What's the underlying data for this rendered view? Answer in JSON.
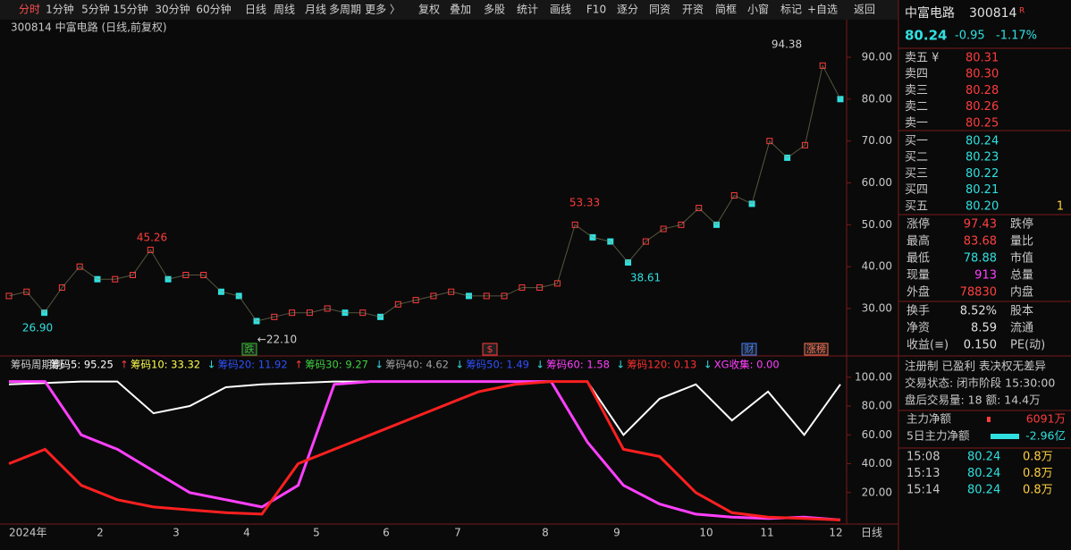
{
  "toolbar": {
    "tabs": [
      "分时",
      "1分钟",
      "5分钟",
      "15分钟",
      "30分钟",
      "60分钟",
      "日线",
      "周线",
      "月线",
      "多周期",
      "更多 〉",
      "复权",
      "叠加",
      "多股",
      "统计",
      "画线",
      "F10",
      "逐分",
      "同资",
      "开资",
      "简框",
      "小窗",
      "标记",
      "+自选",
      "返回"
    ]
  },
  "main_chart": {
    "title": "300814 中富电路 (日线,前复权)",
    "ylim": [
      20,
      96
    ],
    "yticks": [
      {
        "value": 90,
        "label": "90.00"
      },
      {
        "value": 80,
        "label": "80.00"
      },
      {
        "value": 70,
        "label": "70.00"
      },
      {
        "value": 60,
        "label": "60.00"
      },
      {
        "value": 50,
        "label": "50.00"
      },
      {
        "value": 40,
        "label": "40.00"
      },
      {
        "value": 30,
        "label": "30.00"
      }
    ],
    "closes": [
      33,
      34,
      29,
      35,
      40,
      37,
      37,
      38,
      44,
      37,
      38,
      38,
      34,
      33,
      27,
      28,
      29,
      29,
      30,
      29,
      29,
      28,
      31,
      32,
      33,
      34,
      33,
      33,
      33,
      35,
      35,
      36,
      50,
      47,
      46,
      41,
      46,
      49,
      50,
      54,
      50,
      57,
      55,
      70,
      66,
      69,
      88,
      80
    ],
    "annotations": [
      "94.38",
      "45.26",
      "53.33",
      "38.61",
      "26.90",
      "←22.10"
    ],
    "markers": [
      "跌",
      "$",
      "财",
      "涨榜"
    ]
  },
  "indicator": {
    "legend": [
      {
        "name": "筹码周期副",
        "color": "#d0d0d0"
      },
      {
        "name": "筹码5: 95.25",
        "arrow": "↑",
        "color": "#ffffff"
      },
      {
        "name": "筹码10: 33.32",
        "arrow": "↓",
        "color": "#ffff50"
      },
      {
        "name": "筹码20: 11.92",
        "arrow": "↑",
        "color": "#3050ff"
      },
      {
        "name": "筹码30: 9.27",
        "arrow": "↓",
        "color": "#40d040"
      },
      {
        "name": "筹码40: 4.62",
        "arrow": "↓",
        "color": "#a0a0a0"
      },
      {
        "name": "筹码50: 1.49",
        "arrow": "↓",
        "color": "#3050ff"
      },
      {
        "name": "筹码60: 1.58",
        "arrow": "↓",
        "color": "#ff40ff"
      },
      {
        "name": "筹码120: 0.13",
        "arrow": "↓",
        "color": "#ff3030"
      },
      {
        "name": "XG收集: 0.00",
        "color": "#ff40ff"
      }
    ],
    "ylim": [
      0,
      100
    ],
    "yticks": [
      {
        "value": 100,
        "label": "100.00"
      },
      {
        "value": 80,
        "label": "80.00"
      },
      {
        "value": 60,
        "label": "60.00"
      },
      {
        "value": 40,
        "label": "40.00"
      },
      {
        "value": 20,
        "label": "20.00"
      }
    ],
    "series": [
      {
        "color": "#ffffff",
        "values": [
          95,
          96,
          97,
          97,
          75,
          80,
          93,
          95,
          96,
          97,
          97,
          97,
          97,
          97,
          97,
          97,
          97,
          60,
          85,
          95,
          70,
          90,
          60,
          95
        ]
      },
      {
        "color": "#ff40ff",
        "values": [
          97,
          97,
          60,
          50,
          35,
          20,
          15,
          10,
          25,
          95,
          97,
          97,
          97,
          97,
          97,
          97,
          55,
          25,
          12,
          5,
          3,
          2,
          3,
          1
        ]
      },
      {
        "color": "#ff2020",
        "values": [
          40,
          50,
          25,
          15,
          10,
          8,
          6,
          5,
          40,
          50,
          60,
          70,
          80,
          90,
          95,
          97,
          97,
          50,
          45,
          20,
          6,
          3,
          2,
          1
        ]
      }
    ]
  },
  "x_axis": {
    "labels": [
      "2024年",
      "2",
      "3",
      "4",
      "5",
      "6",
      "7",
      "8",
      "9",
      "10",
      "11",
      "12"
    ],
    "period": "日线"
  },
  "quote": {
    "name": "中富电路",
    "code": "300814",
    "flag": "R",
    "price": "80.24",
    "change": "-0.95",
    "pct": "-1.17%",
    "book": [
      [
        "卖五 ¥",
        "80.31",
        ""
      ],
      [
        "卖四",
        "80.30",
        ""
      ],
      [
        "卖三",
        "80.28",
        ""
      ],
      [
        "卖二",
        "80.26",
        ""
      ],
      [
        "卖一",
        "80.25",
        ""
      ],
      [
        "买一",
        "80.24",
        ""
      ],
      [
        "买二",
        "80.23",
        ""
      ],
      [
        "买三",
        "80.22",
        ""
      ],
      [
        "买四",
        "80.21",
        ""
      ],
      [
        "买五",
        "80.20",
        "1"
      ]
    ],
    "stats": [
      [
        "涨停",
        "97.43",
        "跌停"
      ],
      [
        "最高",
        "83.68",
        "量比"
      ],
      [
        "最低",
        "78.88",
        "市值"
      ],
      [
        "现量",
        "913",
        "总量"
      ],
      [
        "外盘",
        "78830",
        "内盘"
      ],
      [
        "换手",
        "8.52%",
        "股本"
      ],
      [
        "净资",
        "8.59",
        "流通"
      ],
      [
        "收益(≡)",
        "0.150",
        "PE(动)"
      ]
    ],
    "info": [
      "注册制 已盈利 表决权无差异",
      "交易状态: 闭市阶段 15:30:00",
      "盘后交易量: 18  额: 14.4万"
    ],
    "flows": [
      [
        "主力净额",
        "6091万"
      ],
      [
        "5日主力净额",
        "-2.96亿"
      ]
    ],
    "trades": [
      [
        "15:08",
        "80.24",
        "0.8万"
      ],
      [
        "15:13",
        "80.24",
        "0.8万"
      ],
      [
        "15:14",
        "80.24",
        "0.8万"
      ]
    ]
  }
}
